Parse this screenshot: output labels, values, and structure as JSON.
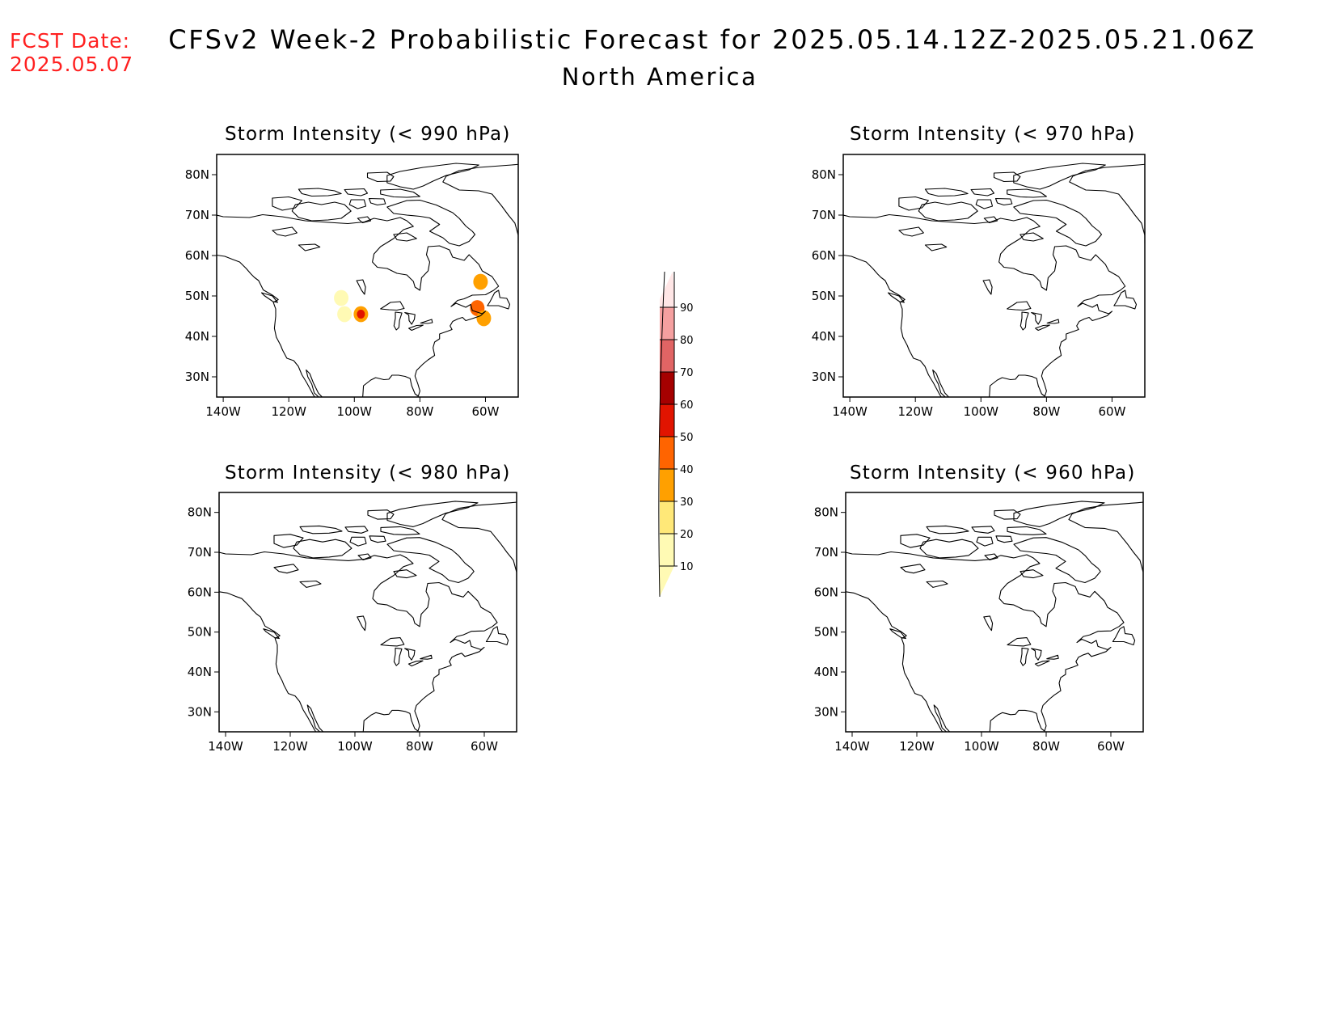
{
  "fcst_date": {
    "label": "FCST Date:",
    "value": "2025.05.07"
  },
  "title": "CFSv2 Week-2 Probabilistic Forecast for 2025.05.14.12Z-2025.05.21.06Z",
  "subtitle": "North America",
  "map_extent": {
    "lon": [
      -142,
      -50
    ],
    "lat": [
      25,
      85
    ]
  },
  "axes": {
    "lon_ticks": [
      -140,
      -120,
      -100,
      -80,
      -60
    ],
    "lon_labels": [
      "140W",
      "120W",
      "100W",
      "80W",
      "60W"
    ],
    "lat_ticks": [
      30,
      40,
      50,
      60,
      70,
      80
    ],
    "lat_labels": [
      "30N",
      "40N",
      "50N",
      "60N",
      "70N",
      "80N"
    ]
  },
  "panels": [
    {
      "title": "Storm Intensity (< 990 hPa)",
      "blobs": [
        {
          "lon": -104,
          "lat": 49.5,
          "value": 10
        },
        {
          "lon": -103,
          "lat": 45.5,
          "value": 10
        },
        {
          "lon": -98,
          "lat": 45.5,
          "value": 35
        },
        {
          "lon": -98,
          "lat": 45.5,
          "value": 50
        },
        {
          "lon": -61.5,
          "lat": 53.5,
          "value": 35
        },
        {
          "lon": -62.5,
          "lat": 47.0,
          "value": 40
        },
        {
          "lon": -60.5,
          "lat": 44.5,
          "value": 30
        }
      ]
    },
    {
      "title": "Storm Intensity (< 970 hPa)",
      "blobs": []
    },
    {
      "title": "Storm Intensity (< 980 hPa)",
      "blobs": []
    },
    {
      "title": "Storm Intensity (< 960 hPa)",
      "blobs": []
    }
  ],
  "colorbar": {
    "levels": [
      "10",
      "20",
      "30",
      "40",
      "50",
      "60",
      "70",
      "80",
      "90"
    ],
    "colors": [
      "#fffab4",
      "#ffe878",
      "#ffa000",
      "#ff6400",
      "#e11400",
      "#a50000",
      "#e16464",
      "#f5a0a0",
      "#ffe6e6"
    ]
  }
}
